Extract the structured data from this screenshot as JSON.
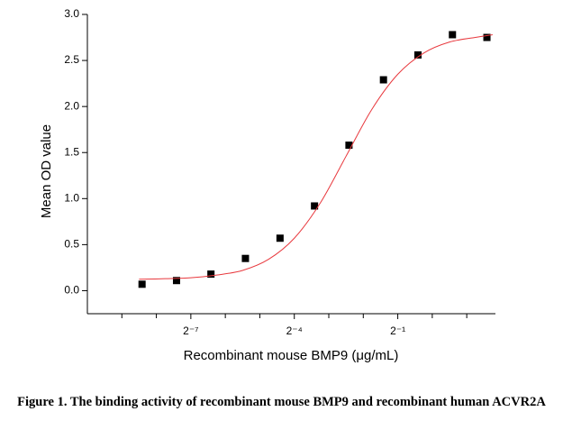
{
  "chart_data": {
    "type": "scatter",
    "x_label": "Recombinant mouse BMP9 (μg/mL)",
    "y_label": "Mean OD value",
    "caption": "Figure 1. The binding activity of recombinant mouse BMP9 and recombinant human ACVR2A",
    "x_scale": "log2",
    "xlim": [
      0.0009765625,
      3.56
    ],
    "ylim": [
      -0.25,
      3.0
    ],
    "yticks": [
      {
        "value": 0,
        "label": "0.0"
      },
      0.5,
      {
        "value": 1,
        "label": "1.0"
      },
      1.5,
      {
        "value": 2,
        "label": "2.0"
      },
      2.5,
      {
        "value": 3,
        "label": "3.0"
      }
    ],
    "xticks": [
      {
        "value": 0.0078125,
        "label": "2⁻⁷"
      },
      {
        "value": 0.0625,
        "label": "2⁻⁴"
      },
      {
        "value": 0.5,
        "label": "2⁻¹"
      }
    ],
    "xminorticks": [
      0.001953125,
      0.00390625,
      0.015625,
      0.03125,
      0.125,
      0.25,
      1,
      2
    ],
    "series": [
      {
        "color": "#000000",
        "x": [
          0.00293,
          0.00586,
          0.0117,
          0.0234,
          0.0469,
          0.0938,
          0.1875,
          0.375,
          0.75,
          1.5,
          3
        ],
        "values": [
          0.07,
          0.11,
          0.18,
          0.35,
          0.57,
          0.92,
          1.58,
          2.29,
          2.56,
          2.78,
          2.75
        ]
      },
      {
        "type": "line",
        "color": "#e8383d",
        "x": [
          0.00276,
          0.00465,
          0.0078125,
          0.01314,
          0.0221,
          0.0372,
          0.0625,
          0.1051,
          0.1768,
          0.2973,
          0.5,
          0.8409,
          1.4142,
          2.3784,
          3.3636
        ],
        "values": [
          0.124,
          0.13,
          0.14,
          0.17,
          0.22,
          0.34,
          0.57,
          0.95,
          1.46,
          1.97,
          2.35,
          2.58,
          2.7,
          2.75,
          2.78
        ]
      }
    ]
  }
}
